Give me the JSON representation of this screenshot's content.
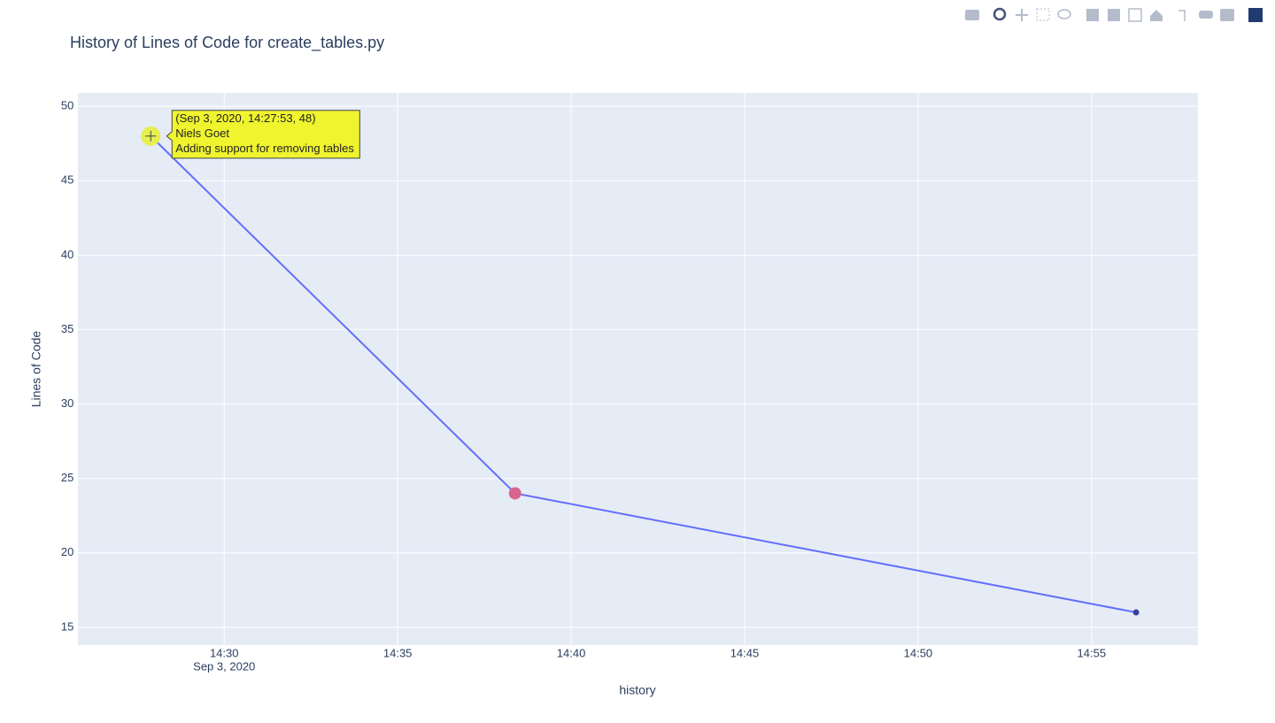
{
  "chart_data": {
    "type": "line",
    "title": "History of Lines of Code for create_tables.py",
    "x_label": "history",
    "y_label": "Lines of Code",
    "x": [
      "2020-09-03T14:27:53",
      "2020-09-03T14:38:23",
      "2020-09-03T14:56:17"
    ],
    "values": [
      48,
      24,
      16
    ],
    "color": "#636efa",
    "marker_colors": [
      "#e5ef50",
      "#d9658f",
      "#3a3f9e"
    ],
    "marker_sizes": [
      22,
      14,
      7
    ],
    "xlim": [
      "2020-09-03T14:25:47",
      "2020-09-03T14:58:04"
    ],
    "xticks": [
      {
        "value": "2020-09-03T14:30:00",
        "label": "14:30"
      },
      {
        "value": "2020-09-03T14:35:00",
        "label": "14:35"
      },
      {
        "value": "2020-09-03T14:40:00",
        "label": "14:40"
      },
      {
        "value": "2020-09-03T14:45:00",
        "label": "14:45"
      },
      {
        "value": "2020-09-03T14:50:00",
        "label": "14:50"
      },
      {
        "value": "2020-09-03T14:55:00",
        "label": "14:55"
      }
    ],
    "xtick_date": "Sep 3, 2020",
    "ylim": [
      13.8,
      50.9
    ],
    "yticks": [
      15,
      20,
      25,
      30,
      35,
      40,
      45,
      50
    ],
    "grid": true,
    "hover": {
      "point": 0,
      "lines": [
        "(Sep 3, 2020, 14:27:53, 48)",
        "Niels Goet",
        "Adding support for removing tables"
      ]
    }
  }
}
